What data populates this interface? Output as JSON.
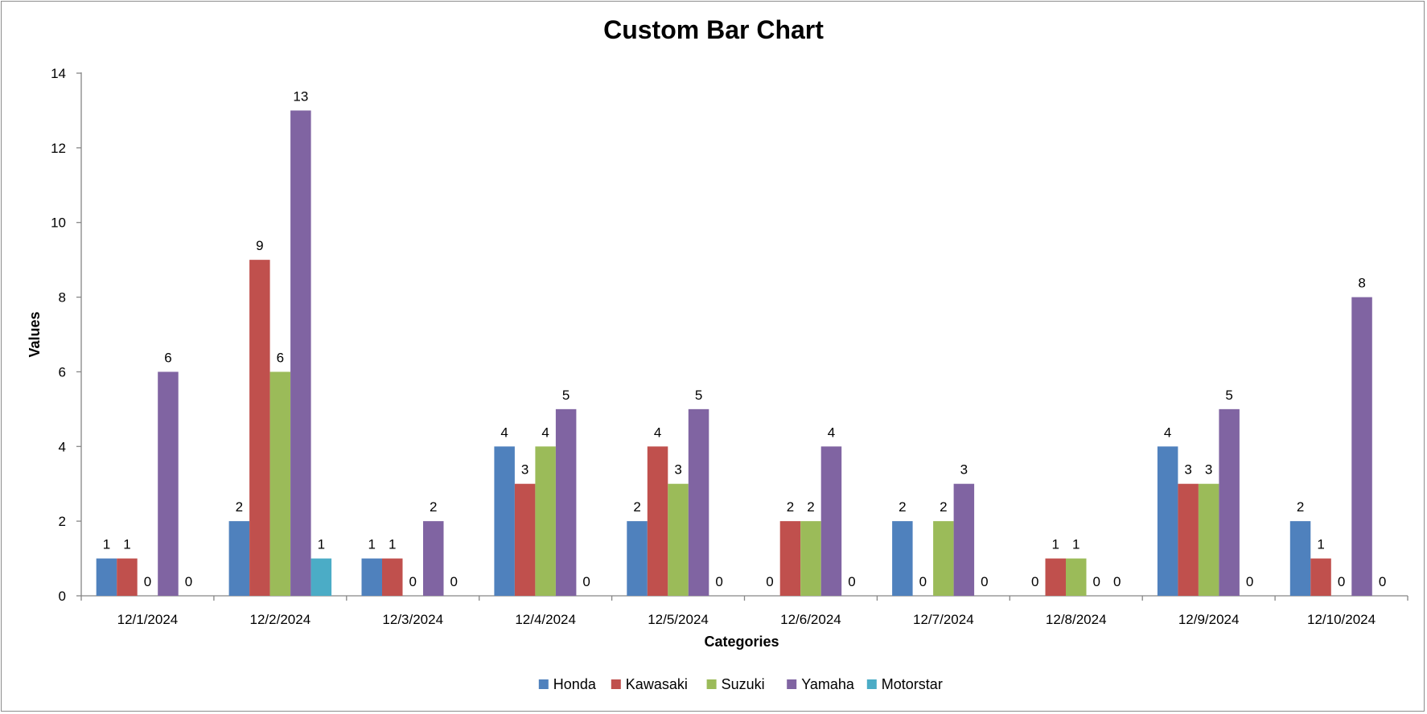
{
  "chart_data": {
    "type": "bar",
    "title": "Custom Bar Chart",
    "xlabel": "Categories",
    "ylabel": "Values",
    "ylim": [
      0,
      14
    ],
    "yticks": [
      0,
      2,
      4,
      6,
      8,
      10,
      12,
      14
    ],
    "legend_position": "bottom",
    "grid": false,
    "categories": [
      "12/1/2024",
      "12/2/2024",
      "12/3/2024",
      "12/4/2024",
      "12/5/2024",
      "12/6/2024",
      "12/7/2024",
      "12/8/2024",
      "12/9/2024",
      "12/10/2024"
    ],
    "series": [
      {
        "name": "Honda",
        "color": "#4f81bd",
        "values": [
          1,
          2,
          1,
          4,
          2,
          0,
          2,
          0,
          4,
          2
        ]
      },
      {
        "name": "Kawasaki",
        "color": "#c0504d",
        "values": [
          1,
          9,
          1,
          3,
          4,
          2,
          0,
          1,
          3,
          1
        ]
      },
      {
        "name": "Suzuki",
        "color": "#9bbb59",
        "values": [
          0,
          6,
          0,
          4,
          3,
          2,
          2,
          1,
          3,
          0
        ]
      },
      {
        "name": "Yamaha",
        "color": "#8064a2",
        "values": [
          6,
          13,
          2,
          5,
          5,
          4,
          3,
          0,
          5,
          8
        ]
      },
      {
        "name": "Motorstar",
        "color": "#4bacc6",
        "values": [
          0,
          1,
          0,
          0,
          0,
          0,
          0,
          0,
          0,
          0
        ]
      }
    ],
    "data_label_series": [
      "Honda",
      "Kawasaki",
      "Suzuki",
      "Yamaha"
    ],
    "data_labels": [
      [
        1,
        1,
        0,
        6,
        0
      ],
      [
        2,
        9,
        6,
        13,
        1
      ],
      [
        1,
        1,
        0,
        2,
        0
      ],
      [
        4,
        3,
        4,
        5,
        0
      ],
      [
        2,
        4,
        3,
        5,
        0
      ],
      [
        0,
        2,
        2,
        4,
        0
      ],
      [
        2,
        0,
        2,
        3,
        0
      ],
      [
        0,
        1,
        1,
        0,
        0
      ],
      [
        4,
        3,
        3,
        5,
        0
      ],
      [
        2,
        1,
        0,
        8,
        0
      ]
    ]
  }
}
